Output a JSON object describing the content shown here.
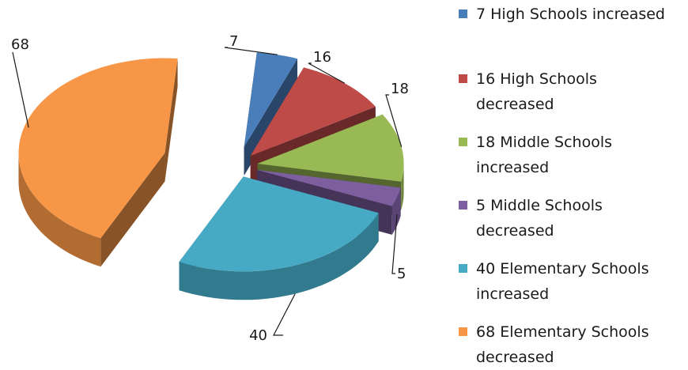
{
  "chart_data": {
    "type": "pie",
    "title": "",
    "style": "3d-exploded",
    "slices": [
      {
        "label": "7 High Schools increased",
        "value": 7,
        "data_label": "7",
        "color": "#4a7ebb"
      },
      {
        "label": "16 High Schools decreased",
        "value": 16,
        "data_label": "16",
        "color": "#be4b48"
      },
      {
        "label": "18 Middle Schools increased",
        "value": 18,
        "data_label": "18",
        "color": "#98b954"
      },
      {
        "label": "5 Middle Schools decreased",
        "value": 5,
        "data_label": "5",
        "color": "#7d5fa0"
      },
      {
        "label": "40 Elementary Schools increased",
        "value": 40,
        "data_label": "40",
        "color": "#46aac5"
      },
      {
        "label": "68 Elementary Schools decreased",
        "value": 68,
        "data_label": "68",
        "color": "#f79646"
      }
    ],
    "legend_placement": "right"
  }
}
